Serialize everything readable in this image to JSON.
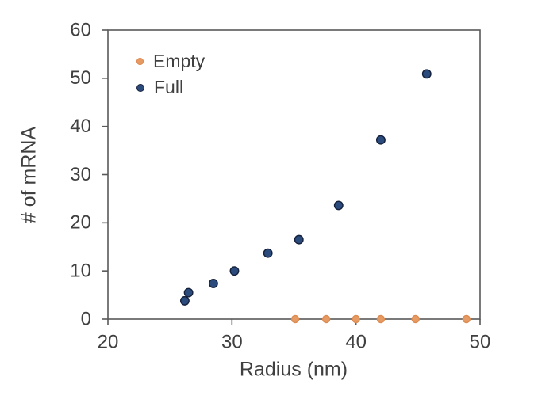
{
  "chart_data": {
    "type": "scatter",
    "title": "",
    "xlabel": "Radius (nm)",
    "ylabel": "# of mRNA",
    "xlim": [
      20,
      50
    ],
    "ylim": [
      0,
      60
    ],
    "xticks": [
      20,
      30,
      40,
      50
    ],
    "yticks": [
      0,
      10,
      20,
      30,
      40,
      50,
      60
    ],
    "grid": false,
    "legend_position": "inside-top-left",
    "colors": {
      "axis_line": "#595959",
      "tick_text": "#404040",
      "background": "#FFFFFF",
      "empty_series": "#E79B64",
      "empty_series_edge": "#DE8B50",
      "full_series": "#2B4B7D",
      "full_series_edge": "#15213C"
    },
    "series": [
      {
        "name": "Empty",
        "marker_color": "#E79B64",
        "marker_edge": "#DE8B50",
        "marker_diameter": 9,
        "points": [
          [
            35.1,
            0
          ],
          [
            37.6,
            0
          ],
          [
            40.0,
            0
          ],
          [
            42.0,
            0
          ],
          [
            44.8,
            0
          ],
          [
            48.9,
            0
          ]
        ]
      },
      {
        "name": "Full",
        "marker_color": "#2B4B7D",
        "marker_edge": "#15213C",
        "marker_diameter": 10.5,
        "points": [
          [
            26.2,
            3.8
          ],
          [
            26.5,
            5.5
          ],
          [
            28.5,
            7.4
          ],
          [
            30.2,
            10.0
          ],
          [
            32.9,
            13.7
          ],
          [
            35.4,
            16.5
          ],
          [
            38.6,
            23.6
          ],
          [
            42.0,
            37.2
          ],
          [
            45.7,
            50.9
          ]
        ]
      }
    ]
  }
}
